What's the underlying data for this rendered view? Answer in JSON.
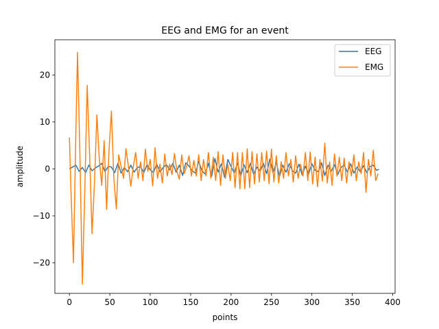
{
  "chart_data": {
    "type": "line",
    "title": "EEG and EMG for an event",
    "xlabel": "points",
    "ylabel": "amplitude",
    "xlim": [
      -18,
      403
    ],
    "ylim": [
      -26.5,
      27.5
    ],
    "xticks": [
      0,
      50,
      100,
      150,
      200,
      250,
      300,
      350,
      400
    ],
    "yticks": [
      -20,
      -10,
      0,
      10,
      20
    ],
    "xtick_labels": [
      "0",
      "50",
      "100",
      "150",
      "200",
      "250",
      "300",
      "350",
      "400"
    ],
    "ytick_labels": [
      "−20",
      "−10",
      "0",
      "10",
      "20"
    ],
    "grid": false,
    "legend_position": "top-right",
    "series": [
      {
        "name": "EEG",
        "color": "#1f77b4",
        "x": [
          0,
          4,
          8,
          12,
          16,
          20,
          24,
          28,
          32,
          36,
          40,
          44,
          48,
          52,
          56,
          60,
          64,
          68,
          72,
          76,
          80,
          84,
          88,
          92,
          96,
          100,
          104,
          108,
          112,
          116,
          120,
          124,
          128,
          132,
          136,
          140,
          144,
          148,
          152,
          156,
          160,
          164,
          168,
          172,
          176,
          180,
          184,
          188,
          192,
          196,
          200,
          204,
          208,
          212,
          216,
          220,
          224,
          228,
          232,
          236,
          240,
          244,
          248,
          252,
          256,
          260,
          264,
          268,
          272,
          276,
          280,
          284,
          288,
          292,
          296,
          300,
          304,
          308,
          312,
          316,
          320,
          324,
          328,
          332,
          336,
          340,
          344,
          348,
          352,
          356,
          360,
          364,
          368,
          372,
          376,
          380,
          383
        ],
        "y": [
          0,
          0.4,
          0.8,
          -0.5,
          0.3,
          -0.8,
          0.8,
          -0.4,
          0.2,
          0.6,
          1.2,
          -0.6,
          0.5,
          0.4,
          -0.8,
          1.2,
          -0.9,
          0.3,
          -0.6,
          0.8,
          -0.7,
          0.3,
          0.5,
          -0.8,
          0.9,
          -0.2,
          -0.8,
          1.0,
          -0.6,
          0.3,
          0.9,
          -0.2,
          1.2,
          -0.7,
          0.8,
          -1.4,
          1.3,
          0.6,
          -0.4,
          -0.9,
          1.6,
          -0.4,
          -1.1,
          1.2,
          -1.6,
          2.2,
          -0.7,
          1.1,
          -1.8,
          2.0,
          0.5,
          -0.9,
          1.3,
          -1.5,
          0.9,
          -0.8,
          1.2,
          -1.2,
          0.4,
          -0.5,
          1.2,
          -1.0,
          2.1,
          -0.8,
          1.4,
          -1.6,
          0.8,
          -0.7,
          1.1,
          -0.4,
          -0.9,
          1.0,
          -1.3,
          0.6,
          -1.1,
          1.1,
          -0.3,
          -0.6,
          1.3,
          -1.4,
          0.8,
          -0.5,
          0.9,
          -1.2,
          0.3,
          0.8,
          -0.7,
          1.1,
          -0.9,
          0.4,
          -0.6,
          0.7,
          -0.8,
          0.5,
          0.8,
          -0.3,
          -0.1
        ]
      },
      {
        "name": "EMG",
        "color": "#ff7f0e",
        "x": [
          0,
          2,
          5,
          8,
          10,
          13,
          16,
          19,
          22,
          25,
          28,
          31,
          34,
          37,
          40,
          43,
          46,
          49,
          52,
          55,
          58,
          61,
          64,
          67,
          70,
          73,
          76,
          79,
          82,
          85,
          88,
          91,
          94,
          97,
          100,
          103,
          106,
          109,
          112,
          115,
          118,
          121,
          124,
          127,
          130,
          133,
          136,
          139,
          142,
          145,
          148,
          151,
          154,
          157,
          160,
          163,
          166,
          169,
          172,
          175,
          178,
          181,
          184,
          187,
          190,
          193,
          196,
          199,
          202,
          205,
          208,
          211,
          214,
          217,
          220,
          223,
          226,
          229,
          232,
          235,
          238,
          241,
          244,
          247,
          250,
          253,
          256,
          259,
          262,
          265,
          268,
          271,
          274,
          277,
          280,
          283,
          286,
          289,
          292,
          295,
          298,
          301,
          304,
          307,
          310,
          313,
          316,
          319,
          322,
          325,
          328,
          331,
          334,
          337,
          340,
          343,
          346,
          349,
          352,
          355,
          358,
          361,
          364,
          367,
          370,
          373,
          376,
          379,
          382
        ],
        "y": [
          6.7,
          -5.0,
          -20.0,
          8.0,
          24.8,
          3.0,
          -24.5,
          -5.0,
          17.8,
          3.0,
          -13.8,
          -3.0,
          11.5,
          2.0,
          -3.5,
          6.0,
          -8.6,
          4.0,
          12.3,
          -2.0,
          -8.5,
          3.0,
          0.5,
          -2.0,
          4.3,
          0.5,
          -3.7,
          0.5,
          3.5,
          -2.0,
          1.5,
          -2.5,
          4.2,
          -0.5,
          2.0,
          -3.6,
          4.5,
          -2.0,
          1.0,
          -3.0,
          3.2,
          -1.5,
          1.0,
          -1.2,
          3.3,
          -0.5,
          -2.2,
          3.0,
          -1.0,
          0.5,
          2.8,
          -1.5,
          1.8,
          -1.5,
          3.0,
          -2.5,
          2.0,
          -1.5,
          3.5,
          -2.0,
          2.5,
          -2.5,
          3.7,
          -3.5,
          3.0,
          -2.0,
          1.0,
          -2.5,
          3.5,
          -4.0,
          3.5,
          -4.2,
          3.5,
          -4.2,
          4.3,
          -4.0,
          3.7,
          -3.2,
          3.2,
          -2.8,
          3.5,
          -2.5,
          3.8,
          -3.2,
          4.2,
          -2.8,
          2.8,
          -3.0,
          1.5,
          -2.0,
          3.5,
          -1.5,
          2.0,
          -2.8,
          2.8,
          -2.0,
          1.0,
          -1.5,
          3.5,
          -2.5,
          3.6,
          -3.2,
          2.5,
          -3.8,
          2.0,
          -2.6,
          5.5,
          -3.0,
          1.5,
          -3.5,
          3.2,
          -1.5,
          2.5,
          -2.5,
          2.3,
          -3.0,
          1.5,
          -1.5,
          3.0,
          -2.5,
          1.5,
          -1.0,
          3.5,
          -5.0,
          2.0,
          -1.5,
          4.0,
          -2.5,
          -1.0
        ]
      }
    ]
  }
}
